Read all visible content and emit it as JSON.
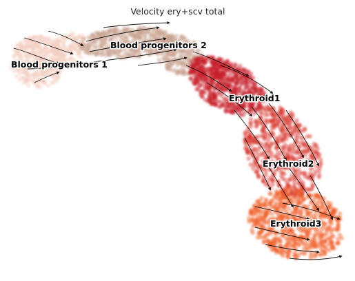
{
  "chart_data": {
    "type": "scatter",
    "title": "Velocity ery+scv total",
    "axes_visible": false,
    "grid": false,
    "overlay": "velocity streamlines with arrowheads",
    "clusters": [
      {
        "name": "Blood progenitors 1",
        "color": "#f3cfc0"
      },
      {
        "name": "Blood progenitors 2",
        "color": "#c9a592"
      },
      {
        "name": "Erythroid1",
        "color": "#c8202a"
      },
      {
        "name": "Erythroid2",
        "color": "#d8332b"
      },
      {
        "name": "Erythroid3",
        "color": "#ef5a24"
      }
    ]
  }
}
